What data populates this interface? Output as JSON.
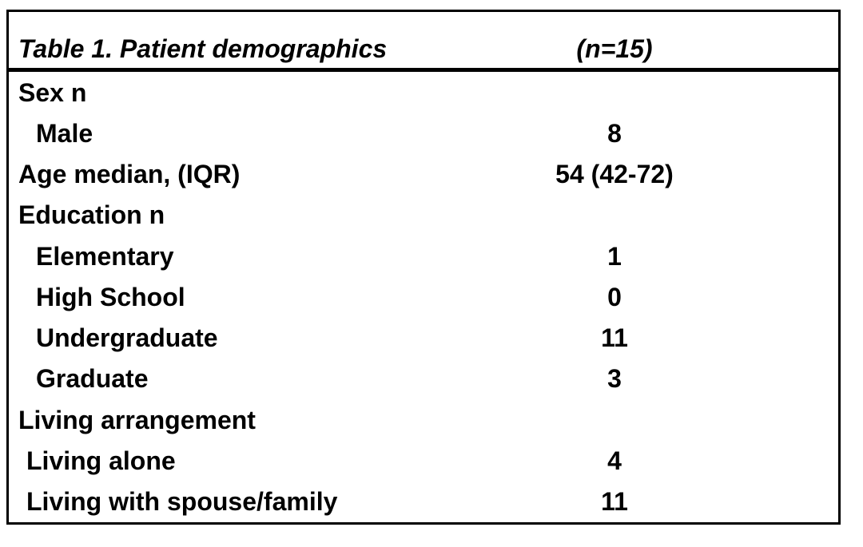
{
  "table": {
    "title": "Table 1. Patient demographics",
    "sample_size_label": "(n=15)",
    "rows": [
      {
        "label": "Sex n",
        "value": "",
        "indent": 0
      },
      {
        "label": "Male",
        "value": "8",
        "indent": 1
      },
      {
        "label": "Age median, (IQR)",
        "value": "54 (42-72)",
        "indent": 0
      },
      {
        "label": "Education n",
        "value": "",
        "indent": 0
      },
      {
        "label": "Elementary",
        "value": "1",
        "indent": 1
      },
      {
        "label": "High School",
        "value": "0",
        "indent": 1
      },
      {
        "label": "Undergraduate",
        "value": "11",
        "indent": 1
      },
      {
        "label": "Graduate",
        "value": "3",
        "indent": 1
      },
      {
        "label": "Living arrangement",
        "value": "",
        "indent": 0
      },
      {
        "label": "Living alone",
        "value": "4",
        "indent": 2
      },
      {
        "label": "Living with spouse/family",
        "value": "11",
        "indent": 2
      }
    ]
  },
  "colors": {
    "border": "#000000",
    "text": "#000000",
    "background": "#ffffff"
  }
}
